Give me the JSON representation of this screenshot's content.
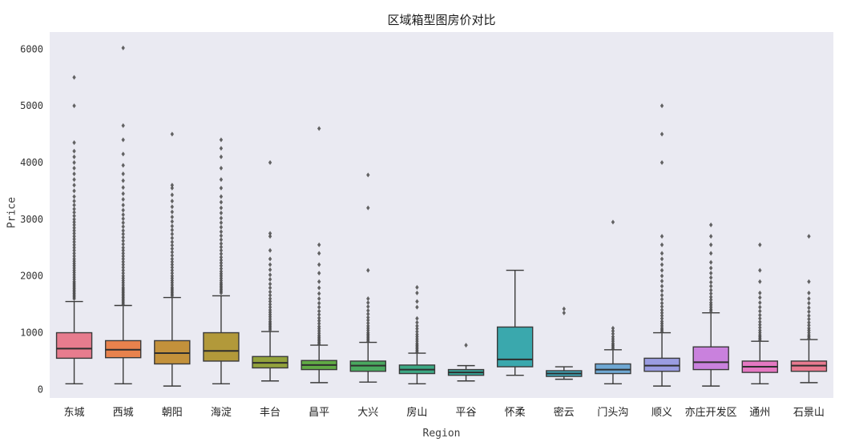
{
  "chart_data": {
    "type": "boxplot",
    "title": "区域箱型图房价对比",
    "xlabel": "Region",
    "ylabel": "Price",
    "ylim": [
      0,
      6000
    ],
    "yticks": [
      0,
      1000,
      2000,
      3000,
      4000,
      5000,
      6000
    ],
    "grid": false,
    "plot_bg": "#eaeaf2",
    "box_edge_color": "#3a3a3a",
    "flier_color": "#4a4a4a",
    "categories": [
      "东城",
      "西城",
      "朝阳",
      "海淀",
      "丰台",
      "昌平",
      "大兴",
      "房山",
      "平谷",
      "怀柔",
      "密云",
      "门头沟",
      "顺义",
      "亦庄开发区",
      "通州",
      "石景山"
    ],
    "colors": [
      "#e77c8e",
      "#e8824d",
      "#c3913b",
      "#b2993a",
      "#93a23c",
      "#61aa45",
      "#4aa85f",
      "#3ca884",
      "#38a79b",
      "#3aa8ad",
      "#40a9bc",
      "#6fa8d4",
      "#9a9ce1",
      "#c981dd",
      "#e478c2",
      "#e87a90"
    ],
    "series": [
      {
        "name": "东城",
        "whislo": 100,
        "q1": 550,
        "med": 720,
        "q3": 1000,
        "whishi": 1550,
        "fliers": [
          1600,
          1630,
          1660,
          1690,
          1720,
          1750,
          1780,
          1810,
          1840,
          1870,
          1900,
          1940,
          1980,
          2020,
          2060,
          2100,
          2140,
          2180,
          2220,
          2260,
          2300,
          2350,
          2400,
          2450,
          2500,
          2550,
          2600,
          2650,
          2700,
          2750,
          2800,
          2850,
          2900,
          2950,
          3000,
          3060,
          3120,
          3180,
          3250,
          3320,
          3400,
          3500,
          3600,
          3700,
          3800,
          3900,
          4000,
          4100,
          4200,
          4350,
          5000,
          5500
        ]
      },
      {
        "name": "西城",
        "whislo": 100,
        "q1": 560,
        "med": 700,
        "q3": 860,
        "whishi": 1480,
        "fliers": [
          1500,
          1530,
          1560,
          1590,
          1620,
          1650,
          1680,
          1710,
          1740,
          1770,
          1800,
          1840,
          1880,
          1920,
          1960,
          2000,
          2050,
          2100,
          2150,
          2200,
          2250,
          2300,
          2350,
          2400,
          2450,
          2500,
          2560,
          2620,
          2680,
          2740,
          2800,
          2870,
          2940,
          3010,
          3080,
          3160,
          3250,
          3350,
          3450,
          3560,
          3680,
          3800,
          3950,
          4150,
          4400,
          4650,
          6020
        ]
      },
      {
        "name": "朝阳",
        "whislo": 60,
        "q1": 450,
        "med": 640,
        "q3": 860,
        "whishi": 1620,
        "fliers": [
          1650,
          1680,
          1710,
          1740,
          1770,
          1800,
          1840,
          1880,
          1920,
          1960,
          2000,
          2050,
          2100,
          2150,
          2200,
          2250,
          2300,
          2360,
          2420,
          2480,
          2540,
          2600,
          2670,
          2740,
          2810,
          2880,
          2960,
          3040,
          3130,
          3220,
          3320,
          3430,
          3550,
          3600,
          4500
        ]
      },
      {
        "name": "海淀",
        "whislo": 100,
        "q1": 500,
        "med": 680,
        "q3": 1000,
        "whishi": 1650,
        "fliers": [
          1700,
          1730,
          1760,
          1790,
          1820,
          1850,
          1880,
          1920,
          1960,
          2000,
          2040,
          2080,
          2130,
          2180,
          2230,
          2280,
          2330,
          2390,
          2450,
          2510,
          2570,
          2640,
          2710,
          2780,
          2860,
          2940,
          3020,
          3110,
          3200,
          3300,
          3400,
          3550,
          3700,
          3900,
          4100,
          4250,
          4400
        ]
      },
      {
        "name": "丰台",
        "whislo": 150,
        "q1": 380,
        "med": 470,
        "q3": 580,
        "whishi": 1020,
        "fliers": [
          1050,
          1080,
          1110,
          1140,
          1170,
          1200,
          1240,
          1280,
          1320,
          1360,
          1400,
          1450,
          1500,
          1550,
          1600,
          1660,
          1720,
          1790,
          1860,
          1940,
          2020,
          2110,
          2200,
          2300,
          2450,
          2700,
          2750,
          4000
        ]
      },
      {
        "name": "昌平",
        "whislo": 120,
        "q1": 350,
        "med": 430,
        "q3": 510,
        "whishi": 780,
        "fliers": [
          800,
          830,
          860,
          890,
          920,
          950,
          990,
          1030,
          1070,
          1110,
          1160,
          1210,
          1260,
          1320,
          1380,
          1450,
          1520,
          1600,
          1690,
          1790,
          1900,
          2050,
          2200,
          2400,
          2550,
          4600
        ]
      },
      {
        "name": "大兴",
        "whislo": 130,
        "q1": 320,
        "med": 420,
        "q3": 500,
        "whishi": 830,
        "fliers": [
          850,
          880,
          910,
          940,
          970,
          1000,
          1040,
          1080,
          1120,
          1170,
          1220,
          1270,
          1330,
          1390,
          1460,
          1530,
          1600,
          2100,
          3200,
          3780
        ]
      },
      {
        "name": "房山",
        "whislo": 100,
        "q1": 280,
        "med": 350,
        "q3": 430,
        "whishi": 640,
        "fliers": [
          660,
          690,
          720,
          750,
          780,
          810,
          850,
          890,
          930,
          970,
          1020,
          1070,
          1120,
          1180,
          1250,
          1450,
          1550,
          1700,
          1800
        ]
      },
      {
        "name": "平谷",
        "whislo": 150,
        "q1": 250,
        "med": 300,
        "q3": 350,
        "whishi": 420,
        "fliers": [
          780
        ]
      },
      {
        "name": "怀柔",
        "whislo": 250,
        "q1": 400,
        "med": 530,
        "q3": 1100,
        "whishi": 2100,
        "fliers": []
      },
      {
        "name": "密云",
        "whislo": 180,
        "q1": 230,
        "med": 280,
        "q3": 330,
        "whishi": 400,
        "fliers": [
          1350,
          1420
        ]
      },
      {
        "name": "门头沟",
        "whislo": 100,
        "q1": 280,
        "med": 350,
        "q3": 450,
        "whishi": 700,
        "fliers": [
          720,
          750,
          780,
          810,
          850,
          890,
          930,
          980,
          1030,
          1080,
          2950
        ]
      },
      {
        "name": "顺义",
        "whislo": 60,
        "q1": 320,
        "med": 420,
        "q3": 550,
        "whishi": 1000,
        "fliers": [
          1020,
          1050,
          1080,
          1120,
          1160,
          1200,
          1250,
          1300,
          1350,
          1400,
          1460,
          1520,
          1590,
          1660,
          1740,
          1820,
          1910,
          2000,
          2100,
          2200,
          2300,
          2400,
          2550,
          2700,
          4000,
          4500,
          5000
        ]
      },
      {
        "name": "亦庄开发区",
        "whislo": 60,
        "q1": 350,
        "med": 480,
        "q3": 750,
        "whishi": 1350,
        "fliers": [
          1380,
          1410,
          1450,
          1490,
          1530,
          1580,
          1630,
          1690,
          1750,
          1820,
          1890,
          1970,
          2050,
          2140,
          2240,
          2400,
          2550,
          2700,
          2900
        ]
      },
      {
        "name": "通州",
        "whislo": 100,
        "q1": 300,
        "med": 400,
        "q3": 500,
        "whishi": 850,
        "fliers": [
          870,
          900,
          930,
          960,
          1000,
          1040,
          1090,
          1140,
          1190,
          1250,
          1310,
          1380,
          1450,
          1530,
          1620,
          1700,
          1900,
          2100,
          2550
        ]
      },
      {
        "name": "石景山",
        "whislo": 120,
        "q1": 320,
        "med": 420,
        "q3": 500,
        "whishi": 880,
        "fliers": [
          900,
          930,
          960,
          1000,
          1040,
          1080,
          1130,
          1180,
          1240,
          1300,
          1370,
          1440,
          1520,
          1600,
          1700,
          1900,
          2700
        ]
      }
    ]
  }
}
